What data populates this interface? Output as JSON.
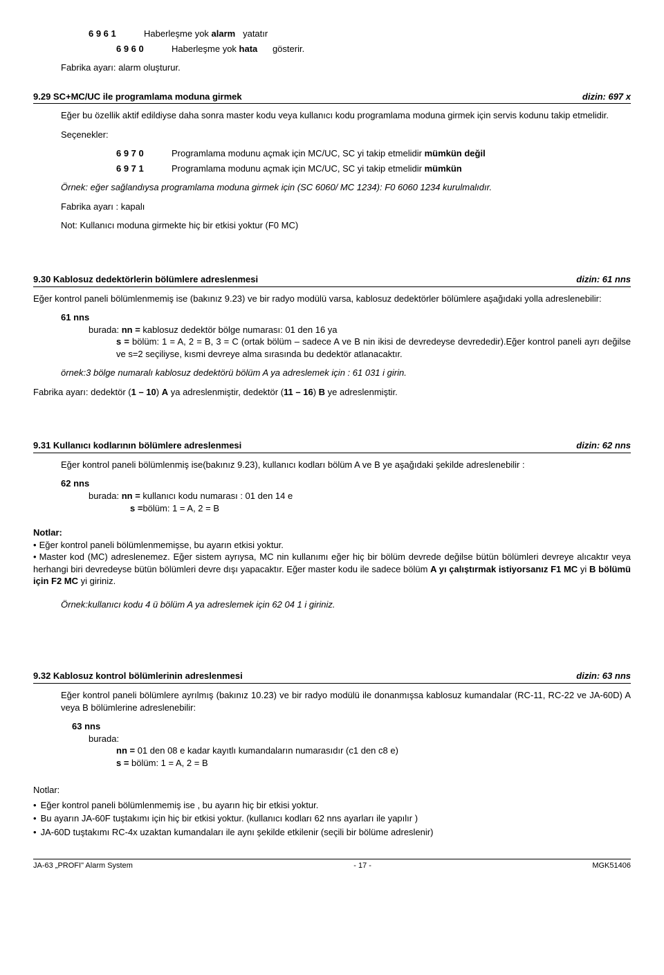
{
  "top": {
    "row1_code": "6 9 6 1",
    "row1_text": "Haberleşme yok <b>alarm</b>   yatatır",
    "row2_code": "6 9 6 0",
    "row2_text": "Haberleşme yok <b>hata</b>      gösterir.",
    "factory": "Fabrika ayarı: alarm oluşturur."
  },
  "s929": {
    "title_left": "9.29 SC+MC/UC ile programlama moduna girmek",
    "title_right": "dizin:  697 x",
    "p1": "Eğer bu özellik aktif edildiyse daha sonra master kodu veya kullanıcı kodu programlama moduna girmek için servis kodunu takip etmelidir.",
    "sec_label": "Seçenekler:",
    "opt1_code": "6 9 7 0",
    "opt1_text": "Programlama modunu açmak için MC/UC, SC yi takip etmelidir <b>mümkün değil</b>",
    "opt2_code": "6 9 7 1",
    "opt2_text": "Programlama modunu açmak için MC/UC, SC yi takip etmelidir <b>mümkün</b>",
    "example": "<i>Örnek: eğer sağlandıysa programlama moduna girmek için  (SC 6060/ MC 1234): F0 6060 1234 kurulmalıdır.</i>",
    "factory": "Fabrika ayarı : kapalı",
    "note": "Not: Kullanıcı moduna girmekte hiç bir etkisi yoktur (F0 MC)"
  },
  "s930": {
    "title_left": "9.30 Kablosuz dedektörlerin bölümlere adreslenmesi",
    "title_right": "dizin:  61 nns",
    "p1": "Eğer  kontrol paneli bölümlenmemiş ise (bakınız 9.23) ve bir radyo modülü varsa, kablosuz dedektörler bölümlere aşağıdaki yolla adreslenebilir:",
    "code": "61 nns",
    "burada_line": "burada: <b>nn =</b> kablosuz dedektör bölge numarası: 01 den  16 ya",
    "s_line": "<b>s =</b> bölüm: 1 = A,   2 = B,   3 = C (ortak bölüm – sadece A ve B nin ikisi de devredeyse devrededir).Eğer kontrol paneli ayrı değilse ve  s=2  seçiliyse,  kısmi devreye alma sırasında bu dedektör atlanacaktır.",
    "example": "<i>örnek:3 bölge numaralı  kablosuz dedektörü bölüm A ya adreslemek için : 61 031 i girin.</i>",
    "factory": "Fabrika ayarı: dedektör (<b>1 – 10</b>)  <b>A</b> ya adreslenmiştir, dedektör  (<b>11 – 16</b>) <b>B</b> ye adreslenmiştir."
  },
  "s931": {
    "title_left": "9.31 Kullanıcı kodlarının bölümlere adreslenmesi",
    "title_right": "dizin:  62 nns",
    "p1": "Eğer kontrol paneli bölümlenmiş ise(bakınız 9.23), kullanıcı kodları bölüm A ve B ye aşağıdaki şekilde adreslenebilir :",
    "code": "62 nns",
    "burada_line": "burada:  <b>nn =</b> kullanıcı kodu numarası : 01 den 14 e",
    "s_line": "<b>s =</b>bölüm: 1 = A, 2 = B",
    "notlar": "Notlar:",
    "bul1": "Eğer kontrol paneli bölümlenmemişse, bu ayarın etkisi yoktur.",
    "bul2": "Master kod (MC) adreslenemez.  Eğer sistem ayrıysa, MC nin kullanımı eğer hiç bir bölüm devrede değilse bütün bölümleri devreye alıcaktır veya herhangi biri devredeyse bütün bölümleri devre dışı yapacaktır. Eğer master kodu ile sadece bölüm <b>A yı çalıştırmak istiyorsanız F1 MC</b> yi <b>B  bölümü için F2 MC</b> yi giriniz.",
    "example": "<i>Örnek:kullanıcı kodu 4 ü bölüm A ya adreslemek için  62 04 1 i giriniz.</i>"
  },
  "s932": {
    "title_left": "9.32 Kablosuz kontrol bölümlerinin adreslenmesi",
    "title_right": "dizin:  63 nns",
    "p1": "Eğer kontrol paneli bölümlere ayrılmış (bakınız 10.23) ve bir radyo modülü ile donanmışsa kablosuz kumandalar (RC-11, RC-22 ve JA-60D)  A veya B bölümlerine adreslenebilir:",
    "code": "63 nns",
    "burada": "burada:",
    "nn_line": "<b>nn =</b> 01 den 08  e kadar kayıtlı kumandaların numarasıdır (c1 den c8 e)",
    "s_line": "<b>s =</b> bölüm: 1 = A, 2 = B",
    "notlar": "Notlar:",
    "bul1": "Eğer kontrol paneli bölümlenmemiş ise ,  bu ayarın hiç bir etkisi yoktur.",
    "bul2": "Bu ayarın JA-60F tuştakımı için hiç bir etkisi yoktur. (kullanıcı kodları 62 nns ayarları ile yapılır )",
    "bul3": "JA-60D tuştakımı  RC-4x uzaktan kumandaları ile aynı şekilde etkilenir (seçili bir bölüme adreslenir)"
  },
  "footer": {
    "left": "JA-63 „PROFI\" Alarm System",
    "center": "- 17 -",
    "right": "MGK51406"
  }
}
